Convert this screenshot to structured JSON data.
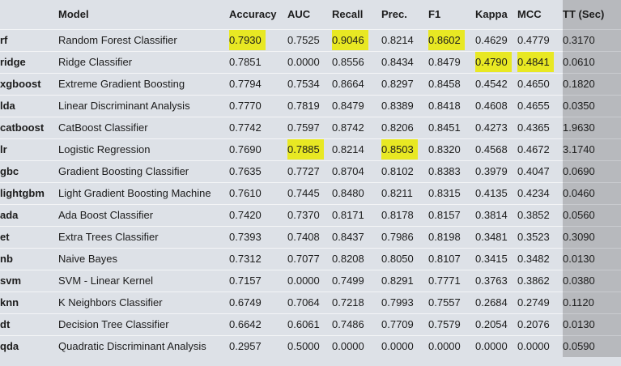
{
  "columns": {
    "abbr": "",
    "model": "Model",
    "accuracy": "Accuracy",
    "auc": "AUC",
    "recall": "Recall",
    "prec": "Prec.",
    "f1": "F1",
    "kappa": "Kappa",
    "mcc": "MCC",
    "tt": "TT (Sec)"
  },
  "highlight_color": "#e8e823",
  "tt_column_color": "#b7b9bd",
  "rows": [
    {
      "abbr": "rf",
      "model": "Random Forest Classifier",
      "accuracy": "0.7930",
      "auc": "0.7525",
      "recall": "0.9046",
      "prec": "0.8214",
      "f1": "0.8602",
      "kappa": "0.4629",
      "mcc": "0.4779",
      "tt": "0.3170"
    },
    {
      "abbr": "ridge",
      "model": "Ridge Classifier",
      "accuracy": "0.7851",
      "auc": "0.0000",
      "recall": "0.8556",
      "prec": "0.8434",
      "f1": "0.8479",
      "kappa": "0.4790",
      "mcc": "0.4841",
      "tt": "0.0610"
    },
    {
      "abbr": "xgboost",
      "model": "Extreme Gradient Boosting",
      "accuracy": "0.7794",
      "auc": "0.7534",
      "recall": "0.8664",
      "prec": "0.8297",
      "f1": "0.8458",
      "kappa": "0.4542",
      "mcc": "0.4650",
      "tt": "0.1820"
    },
    {
      "abbr": "lda",
      "model": "Linear Discriminant Analysis",
      "accuracy": "0.7770",
      "auc": "0.7819",
      "recall": "0.8479",
      "prec": "0.8389",
      "f1": "0.8418",
      "kappa": "0.4608",
      "mcc": "0.4655",
      "tt": "0.0350"
    },
    {
      "abbr": "catboost",
      "model": "CatBoost Classifier",
      "accuracy": "0.7742",
      "auc": "0.7597",
      "recall": "0.8742",
      "prec": "0.8206",
      "f1": "0.8451",
      "kappa": "0.4273",
      "mcc": "0.4365",
      "tt": "1.9630"
    },
    {
      "abbr": "lr",
      "model": "Logistic Regression",
      "accuracy": "0.7690",
      "auc": "0.7885",
      "recall": "0.8214",
      "prec": "0.8503",
      "f1": "0.8320",
      "kappa": "0.4568",
      "mcc": "0.4672",
      "tt": "3.1740"
    },
    {
      "abbr": "gbc",
      "model": "Gradient Boosting Classifier",
      "accuracy": "0.7635",
      "auc": "0.7727",
      "recall": "0.8704",
      "prec": "0.8102",
      "f1": "0.8383",
      "kappa": "0.3979",
      "mcc": "0.4047",
      "tt": "0.0690"
    },
    {
      "abbr": "lightgbm",
      "model": "Light Gradient Boosting Machine",
      "accuracy": "0.7610",
      "auc": "0.7445",
      "recall": "0.8480",
      "prec": "0.8211",
      "f1": "0.8315",
      "kappa": "0.4135",
      "mcc": "0.4234",
      "tt": "0.0460"
    },
    {
      "abbr": "ada",
      "model": "Ada Boost Classifier",
      "accuracy": "0.7420",
      "auc": "0.7370",
      "recall": "0.8171",
      "prec": "0.8178",
      "f1": "0.8157",
      "kappa": "0.3814",
      "mcc": "0.3852",
      "tt": "0.0560"
    },
    {
      "abbr": "et",
      "model": "Extra Trees Classifier",
      "accuracy": "0.7393",
      "auc": "0.7408",
      "recall": "0.8437",
      "prec": "0.7986",
      "f1": "0.8198",
      "kappa": "0.3481",
      "mcc": "0.3523",
      "tt": "0.3090"
    },
    {
      "abbr": "nb",
      "model": "Naive Bayes",
      "accuracy": "0.7312",
      "auc": "0.7077",
      "recall": "0.8208",
      "prec": "0.8050",
      "f1": "0.8107",
      "kappa": "0.3415",
      "mcc": "0.3482",
      "tt": "0.0130"
    },
    {
      "abbr": "svm",
      "model": "SVM - Linear Kernel",
      "accuracy": "0.7157",
      "auc": "0.0000",
      "recall": "0.7499",
      "prec": "0.8291",
      "f1": "0.7771",
      "kappa": "0.3763",
      "mcc": "0.3862",
      "tt": "0.0380"
    },
    {
      "abbr": "knn",
      "model": "K Neighbors Classifier",
      "accuracy": "0.6749",
      "auc": "0.7064",
      "recall": "0.7218",
      "prec": "0.7993",
      "f1": "0.7557",
      "kappa": "0.2684",
      "mcc": "0.2749",
      "tt": "0.1120"
    },
    {
      "abbr": "dt",
      "model": "Decision Tree Classifier",
      "accuracy": "0.6642",
      "auc": "0.6061",
      "recall": "0.7486",
      "prec": "0.7709",
      "f1": "0.7579",
      "kappa": "0.2054",
      "mcc": "0.2076",
      "tt": "0.0130"
    },
    {
      "abbr": "qda",
      "model": "Quadratic Discriminant Analysis",
      "accuracy": "0.2957",
      "auc": "0.5000",
      "recall": "0.0000",
      "prec": "0.0000",
      "f1": "0.0000",
      "kappa": "0.0000",
      "mcc": "0.0000",
      "tt": "0.0590"
    }
  ],
  "highlighted_cells": [
    {
      "abbr": "rf",
      "column": "accuracy"
    },
    {
      "abbr": "rf",
      "column": "recall"
    },
    {
      "abbr": "rf",
      "column": "f1"
    },
    {
      "abbr": "ridge",
      "column": "kappa"
    },
    {
      "abbr": "ridge",
      "column": "mcc"
    },
    {
      "abbr": "lr",
      "column": "auc"
    },
    {
      "abbr": "lr",
      "column": "prec"
    }
  ]
}
